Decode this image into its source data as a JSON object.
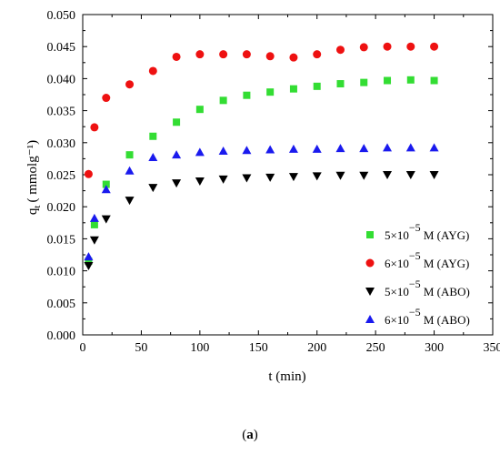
{
  "chart_data": {
    "type": "scatter",
    "xlabel": "t (min)",
    "ylabel_main": "q",
    "ylabel_sub": "t",
    "ylabel_unit": "( mmolg⁻¹)",
    "xlim": [
      0,
      350
    ],
    "ylim": [
      0.0,
      0.05
    ],
    "xticks": [
      "0",
      "50",
      "100",
      "150",
      "200",
      "250",
      "300",
      "350"
    ],
    "yticks": [
      "0.000",
      "0.005",
      "0.010",
      "0.015",
      "0.020",
      "0.025",
      "0.030",
      "0.035",
      "0.040",
      "0.045",
      "0.050"
    ],
    "grid": false,
    "legend_position": "bottom-right",
    "x": [
      5,
      10,
      20,
      40,
      60,
      80,
      100,
      120,
      140,
      160,
      180,
      200,
      220,
      240,
      260,
      280,
      300
    ],
    "series": [
      {
        "name_base": "5×10",
        "name_exp": "−5",
        "name_tail": " M (AYG)",
        "marker": "square",
        "color": "#33dd33",
        "values": [
          0.0115,
          0.0172,
          0.0235,
          0.0281,
          0.031,
          0.0332,
          0.0352,
          0.0366,
          0.0374,
          0.0379,
          0.0384,
          0.0388,
          0.0392,
          0.0394,
          0.0397,
          0.0398,
          0.0397
        ]
      },
      {
        "name_base": "6×10",
        "name_exp": "−5",
        "name_tail": " M (AYG)",
        "marker": "circle",
        "color": "#ee1111",
        "values": [
          0.0251,
          0.0324,
          0.037,
          0.0391,
          0.0412,
          0.0434,
          0.0438,
          0.0438,
          0.0438,
          0.0435,
          0.0433,
          0.0438,
          0.0445,
          0.0449,
          0.045,
          0.045,
          0.045
        ]
      },
      {
        "name_base": "5×10",
        "name_exp": "−5",
        "name_tail": " M (ABO)",
        "marker": "triangle-down",
        "color": "#000000",
        "values": [
          0.0108,
          0.0148,
          0.0181,
          0.021,
          0.023,
          0.0237,
          0.024,
          0.0243,
          0.0245,
          0.0246,
          0.0247,
          0.0248,
          0.0249,
          0.0249,
          0.025,
          0.025,
          0.025
        ]
      },
      {
        "name_base": "6×10",
        "name_exp": "−5",
        "name_tail": " M (ABO)",
        "marker": "triangle-up",
        "color": "#1a1aee",
        "values": [
          0.0122,
          0.0182,
          0.0227,
          0.0256,
          0.0277,
          0.0281,
          0.0285,
          0.0287,
          0.0288,
          0.0289,
          0.029,
          0.029,
          0.0291,
          0.0291,
          0.0292,
          0.0292,
          0.0292
        ]
      }
    ]
  },
  "caption": {
    "open": "(",
    "label": "a",
    "close": ")"
  }
}
